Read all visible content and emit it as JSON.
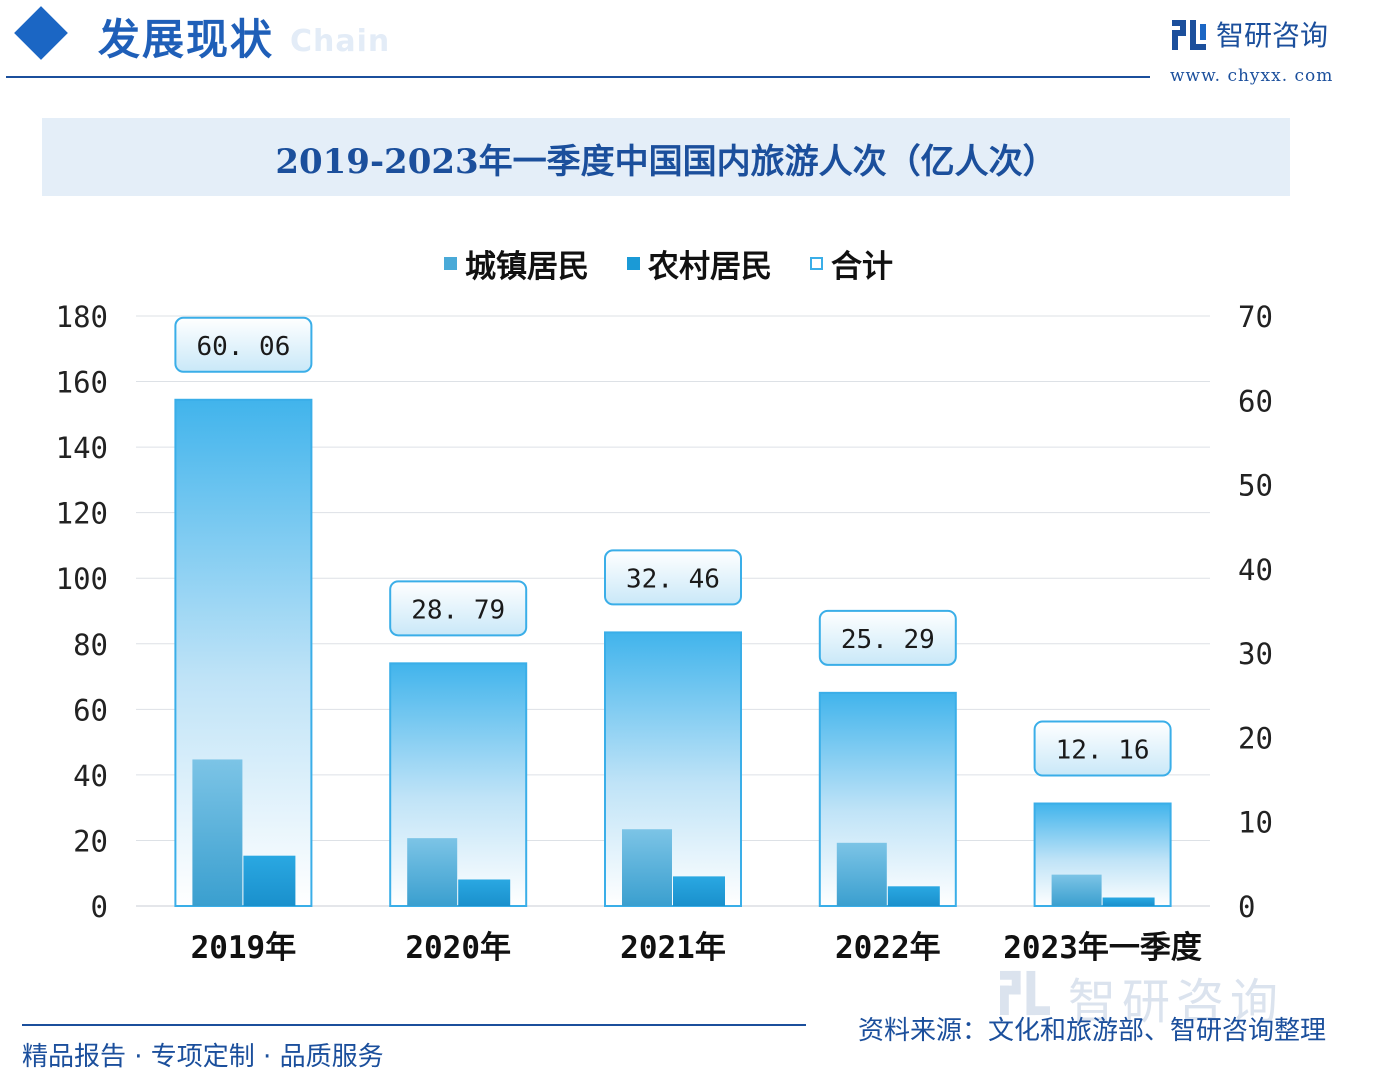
{
  "header": {
    "section_title": "发展现状",
    "section_ghost": "Chain",
    "brand_name": "智研咨询",
    "brand_url": "www. chyxx. com",
    "accent": "#1b66c4",
    "dark_blue": "#1b4f9c"
  },
  "chart_data": {
    "type": "bar",
    "title": "2019-2023年一季度中国国内旅游人次（亿人次）",
    "categories": [
      "2019年",
      "2020年",
      "2021年",
      "2022年",
      "2023年一季度"
    ],
    "series": [
      {
        "name": "城镇居民",
        "axis": "left",
        "values": [
          44.71,
          20.7,
          23.42,
          19.28,
          9.57
        ],
        "color": "#4aaad8"
      },
      {
        "name": "农村居民",
        "axis": "left",
        "values": [
          15.35,
          8.09,
          9.04,
          6.01,
          2.59
        ],
        "color": "#1b9ad6"
      },
      {
        "name": "合计",
        "axis": "right",
        "values": [
          60.06,
          28.79,
          32.46,
          25.29,
          12.16
        ],
        "color": "#3aaee8",
        "data_labels": [
          "60. 06",
          "28. 79",
          "32. 46",
          "25. 29",
          "12. 16"
        ]
      }
    ],
    "y_left": {
      "ylim": [
        0,
        180
      ],
      "ticks": [
        "0",
        "20",
        "40",
        "60",
        "80",
        "100",
        "120",
        "140",
        "160",
        "180"
      ]
    },
    "y_right": {
      "ylim": [
        0,
        70
      ],
      "ticks": [
        "0",
        "10",
        "20",
        "30",
        "40",
        "50",
        "60",
        "70"
      ]
    },
    "grid": true,
    "legend_position": "top-center"
  },
  "footer": {
    "slogan": "精品报告 · 专项定制 · 品质服务",
    "source": "资料来源：文化和旅游部、智研咨询整理",
    "watermark": "智研咨询"
  }
}
